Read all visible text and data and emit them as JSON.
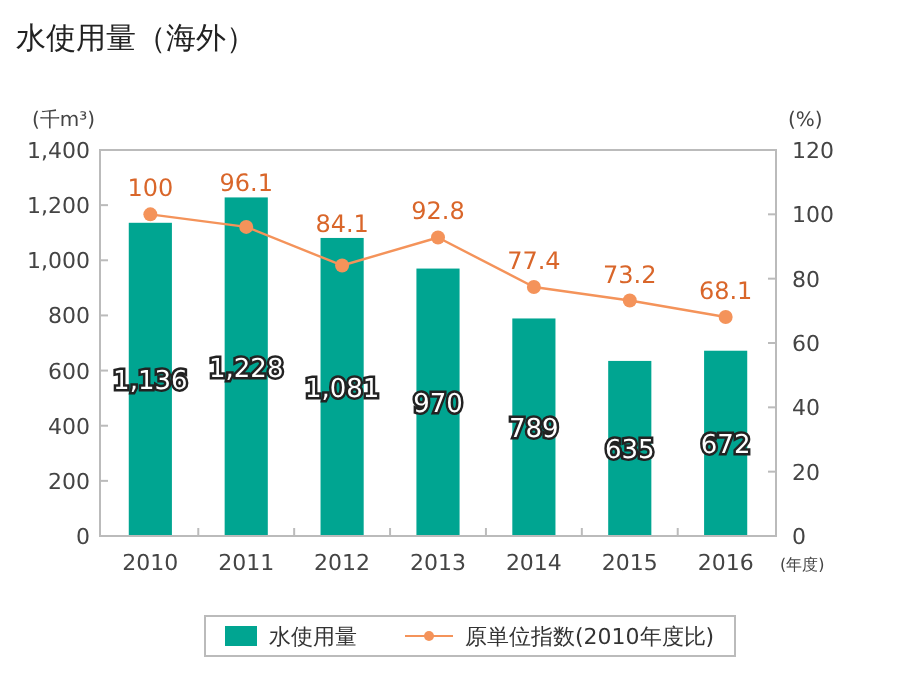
{
  "chart_data": {
    "type": "bar",
    "title": "水使用量（海外）",
    "ylabel": "(千m³)",
    "y2label": "(%)",
    "xlabel": "(年度)",
    "categories": [
      "2010",
      "2011",
      "2012",
      "2013",
      "2014",
      "2015",
      "2016"
    ],
    "series": [
      {
        "name": "水使用量",
        "color": "#00a591",
        "values": [
          1136,
          1228,
          1081,
          970,
          789,
          635,
          672
        ],
        "value_labels": [
          "1,136",
          "1,228",
          "1,081",
          "970",
          "789",
          "635",
          "672"
        ]
      },
      {
        "name": "原単位指数(2010年度比)",
        "type": "line",
        "axis": "y2",
        "color": "#f4935a",
        "marker": "circle",
        "values": [
          100,
          96.1,
          84.1,
          92.8,
          77.4,
          73.2,
          68.1
        ]
      }
    ],
    "ylim": [
      0,
      1400
    ],
    "yticks": [
      0,
      {
        "value": 200,
        "label": "200"
      },
      {
        "value": 400,
        "label": "400"
      },
      {
        "value": 600,
        "label": "600"
      },
      {
        "value": 800,
        "label": "800"
      },
      {
        "value": 1000,
        "label": "1,000"
      },
      {
        "value": 1200,
        "label": "1,200"
      },
      {
        "value": 1400,
        "label": "1,400"
      }
    ],
    "y2lim": [
      0,
      120
    ],
    "y2ticks": [
      0,
      20,
      40,
      60,
      80,
      100,
      120
    ],
    "data_labels": true,
    "grid": false,
    "legend": "bottom"
  }
}
